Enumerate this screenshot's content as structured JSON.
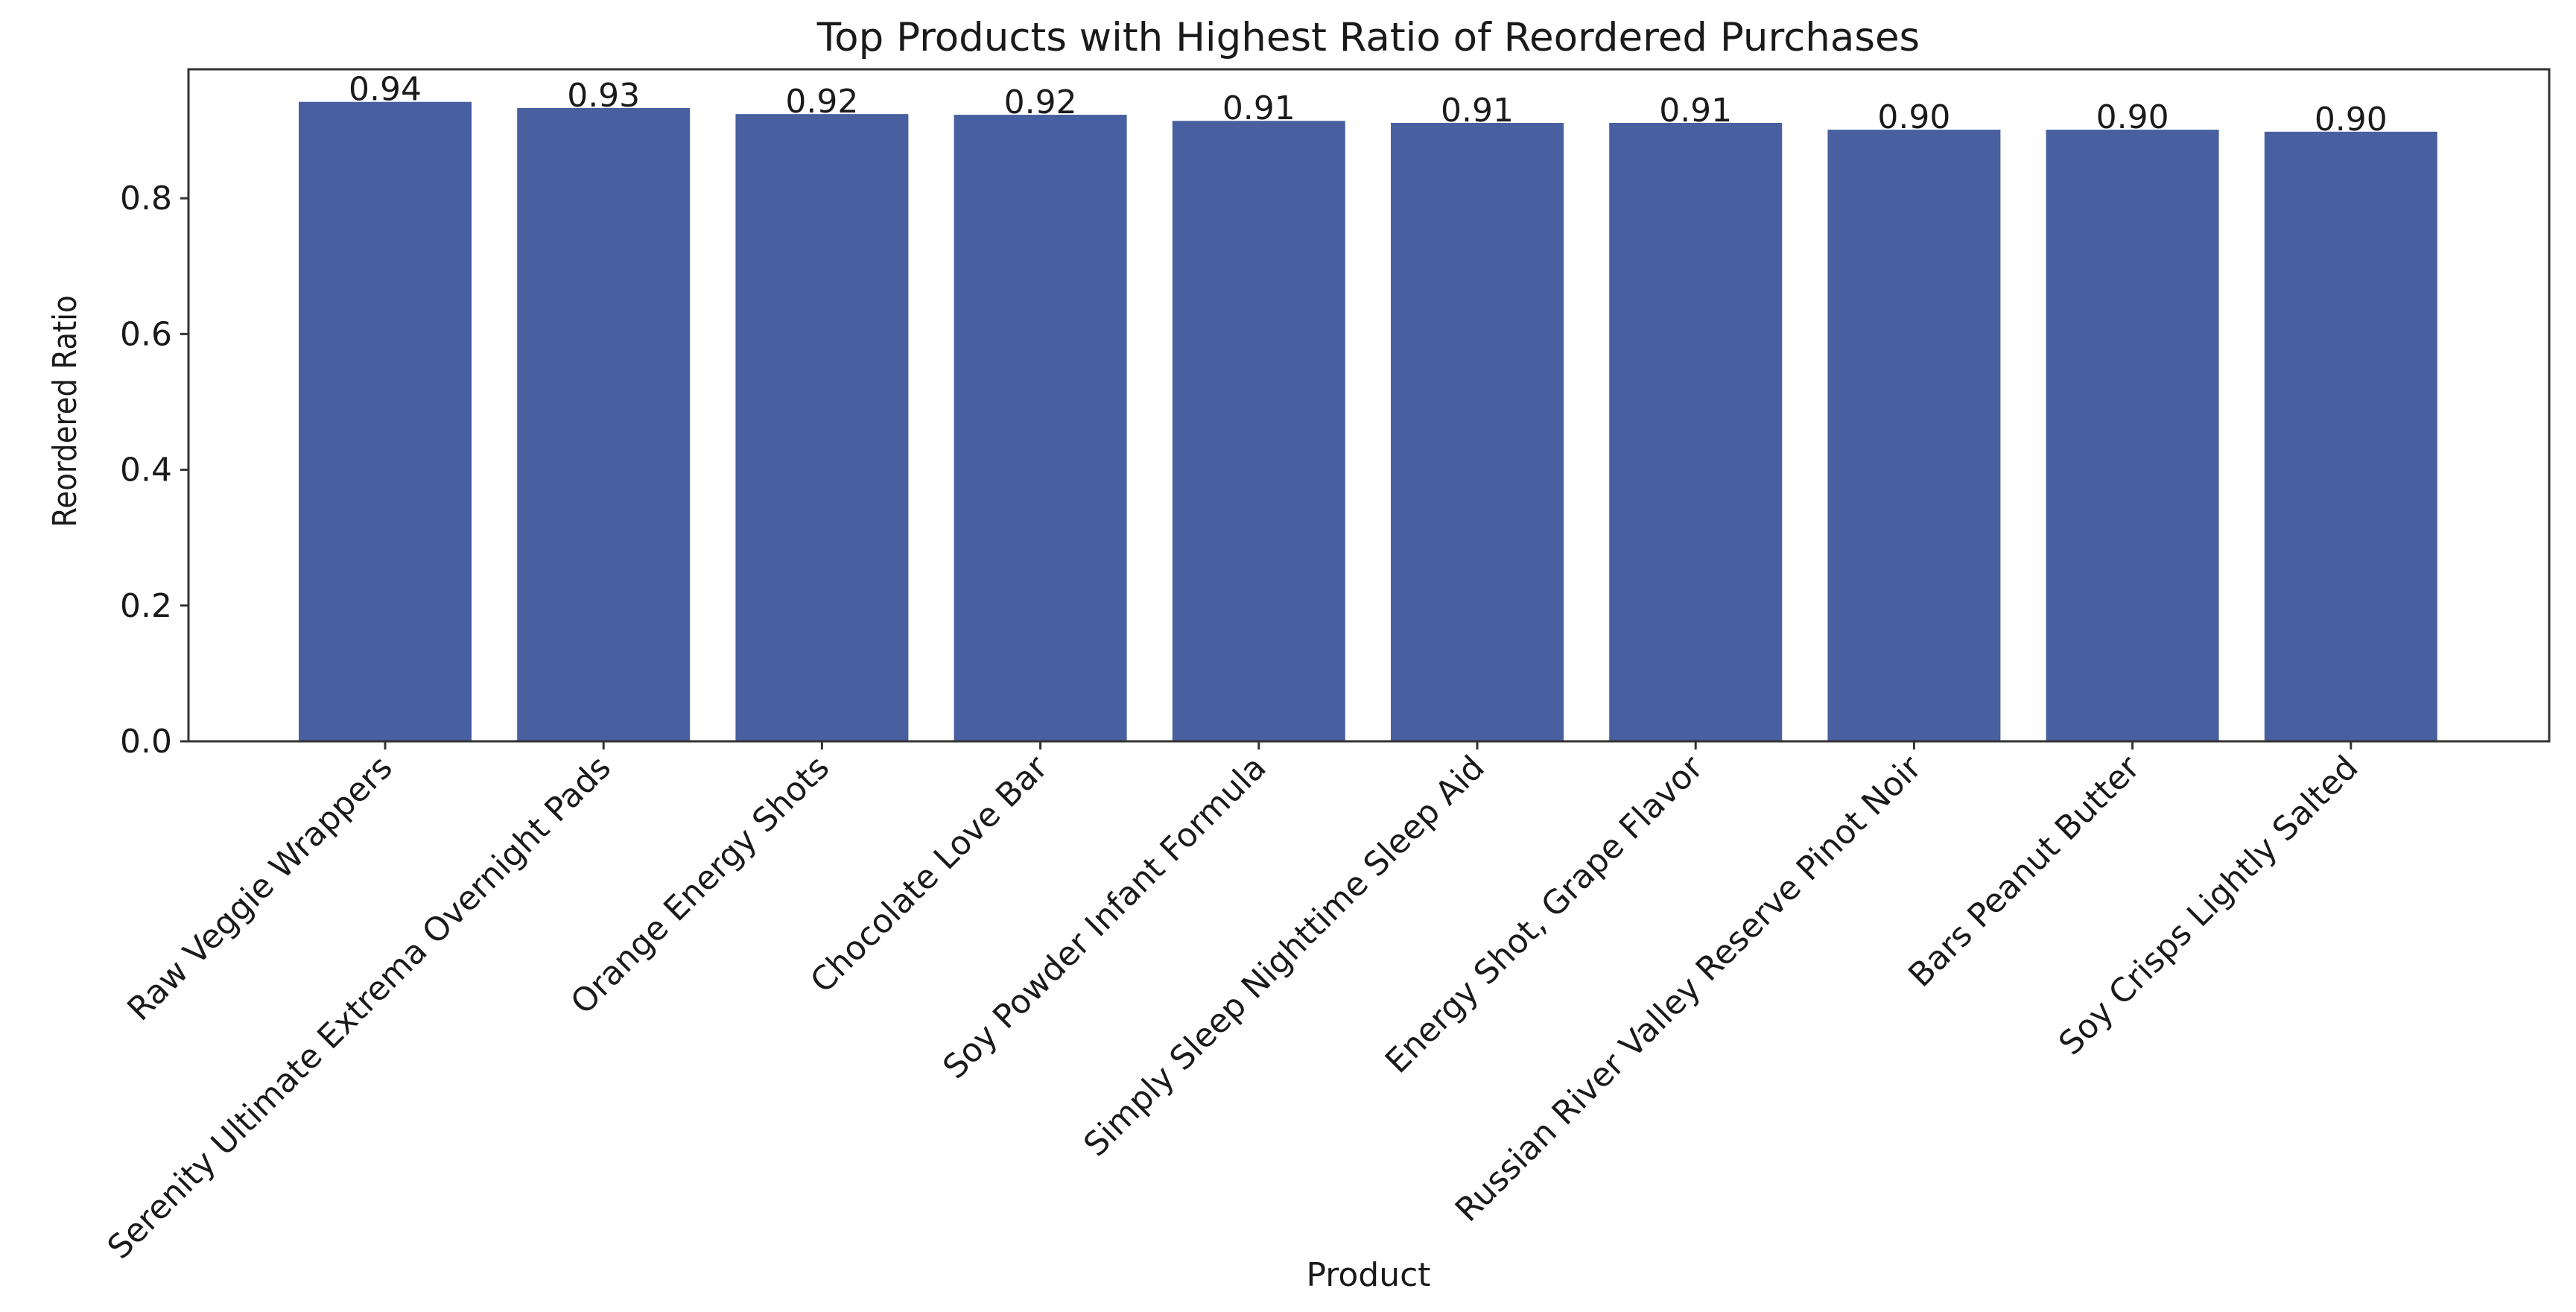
{
  "chart_data": {
    "type": "bar",
    "title": "Top Products with Highest Ratio of Reordered Purchases",
    "xlabel": "Product",
    "ylabel": "Reordered Ratio",
    "categories": [
      "Raw Veggie Wrappers",
      "Serenity Ultimate Extrema Overnight Pads",
      "Orange Energy Shots",
      "Chocolate Love Bar",
      "Soy Powder Infant Formula",
      "Simply Sleep Nighttime Sleep Aid",
      "Energy Shot, Grape Flavor",
      "Russian River Valley Reserve Pinot Noir",
      "Bars Peanut Butter",
      "Soy Crisps Lightly Salted"
    ],
    "values": [
      0.942,
      0.933,
      0.924,
      0.923,
      0.914,
      0.911,
      0.911,
      0.901,
      0.901,
      0.898
    ],
    "value_labels": [
      "0.94",
      "0.93",
      "0.92",
      "0.92",
      "0.91",
      "0.91",
      "0.91",
      "0.90",
      "0.90",
      "0.90"
    ],
    "y_ticks": [
      "0.0",
      "0.2",
      "0.4",
      "0.6",
      "0.8"
    ],
    "ylim": [
      0,
      0.99
    ],
    "bar_color": "#4860a0",
    "grid": false,
    "legend": "none"
  }
}
